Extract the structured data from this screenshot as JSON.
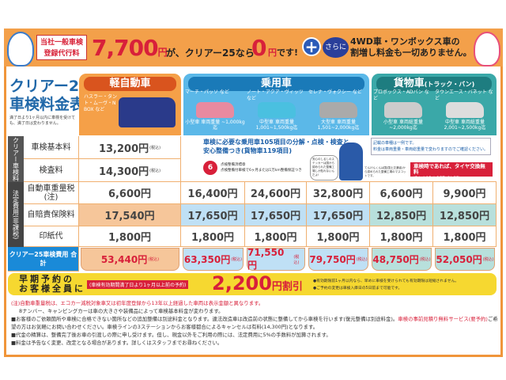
{
  "banner": {
    "tag": "当社一般車検 登録代行料",
    "price": "7,700",
    "yen": "円",
    "text1": "が、クリアー25なら",
    "zero": "0",
    "text2": "です!",
    "plus": "+",
    "sarani": "さらに",
    "wd_line1": "4WD車・ワンボックス車の",
    "wd_line2": "割増し料金も一切ありません。"
  },
  "title": {
    "line1": "クリアー25",
    "line2": "車検料金表",
    "note": "満了日より1ヶ月以内に車検を受けても、満了日は変わりません。"
  },
  "categories": [
    {
      "name": "軽自動車",
      "color": "#f08a2a",
      "cars": [
        {
          "examples": "ハスラー・タント・ムーヴ・N BOX など",
          "weight": ""
        }
      ]
    },
    {
      "name": "乗用車",
      "color": "#2e9fd8",
      "cars": [
        {
          "examples": "マーチ・パッソ など",
          "weight": "小型車 車両重量 ~1,000kg迄"
        },
        {
          "examples": "ノート・アクア・ヴィッツ など",
          "weight": "中型車 車両重量 1,001~1,500kg迄"
        },
        {
          "examples": "セレナ・ヴォクシー など",
          "weight": "大型車 車両重量 1,501~2,000kg迄"
        }
      ]
    },
    {
      "name": "貨物車",
      "suffix": "(トラック・バン)",
      "color": "#2aa0a0",
      "cars": [
        {
          "examples": "プロボックス・ADバン など",
          "weight": "小型車 車両総重量 ~2,000kg迄"
        },
        {
          "examples": "タウンエース・バネット など",
          "weight": "中型車 車両総重量 2,001~2,500kg迄"
        }
      ]
    }
  ],
  "groups": {
    "clear": "クリアー車検料",
    "legal": "法定費用(非課税)"
  },
  "rows": [
    {
      "label": "車検基本料",
      "values": [
        "13,200円"
      ],
      "tax": "(税込)"
    },
    {
      "label": "検査料",
      "values": [
        "14,300円"
      ],
      "tax": "(税込)"
    },
    {
      "label": "自動車重量税(注)",
      "values": [
        "6,600円",
        "16,400円",
        "24,600円",
        "32,800円",
        "6,600円",
        "9,900円"
      ]
    },
    {
      "label": "自賠責保険料",
      "values": [
        "17,540円",
        "17,650円",
        "17,650円",
        "17,650円",
        "12,850円",
        "12,850円"
      ]
    },
    {
      "label": "印紙代",
      "values": [
        "1,800円",
        "1,800円",
        "1,800円",
        "1,800円",
        "1,800円",
        "1,800円"
      ]
    }
  ],
  "total": {
    "label": "クリアー25車検費用 合計",
    "values": [
      "53,440円",
      "63,350円",
      "71,550円",
      "79,750円",
      "48,750円",
      "52,050円"
    ],
    "tax": "(税込)"
  },
  "info": {
    "headline1": "車検に必要な乗用車105項目の分解・点検・検査と",
    "headline2": "安心整備つき(貨物車119項目)",
    "seal": "6",
    "seal_title": "点検整備済標章",
    "seal_text": "点検整備付車検で6ヶ月または1万km整備保証つき",
    "bubble": "安心のしるしのステッカーは国から認められた整備工場しか貼れないんだよ!",
    "mascot_note": "てんけんくんは国(国土交通省)から認められた整備工場のマスコットです。",
    "notice1": "記載の車種は一例です。",
    "notice2": "料金は車両重量・車両総重量で変わりますのでご確認ください。",
    "tire": "車検時であれば、タイヤ交換無料",
    "tire_sub": "(ホイールのタイヤを交換いたします)"
  },
  "early": {
    "line1": "早期予約の",
    "line2": "お客様全員に",
    "cond": "(車検有効期間満了日より1ヶ月以上前の予約)",
    "amount": "2,200",
    "unit": "円割引",
    "note1": "●有効期限前1ヶ月以内なら、早めに車検を受けられても有効期限は短縮されません。",
    "note2": "●ご予約の変更は車検入庫日の5日前まで可能です。"
  },
  "notes": [
    "(注)自動車重量税は、エコカー減税対象車又は初年度登録から13年以上経過した車両は表示金額と異なります。",
    "8ナンバー、キャンピングカーは車の大きさや装備品によって車検基本料金が変わります。",
    "■お客様のご依頼箇所や車検に合格できない箇所などの追加整備は別途料金となります。違法改造車は改造前の状態に整備してから車検を行います(復元整備は別途料金)。",
    "車検の事前見積り無料サービス(要予約)",
    "ご希望の方はお気軽にお問い合わせください。車検ラインの3ステーションからお客様都合によるキャンセルは有料(14,300円)となります。",
    "■代金の精算は、整備完了後お車の引渡しの際に申し受けます。但し、現金以外をご利用の際には、法定費用に5%の手数料が加算されます。",
    "■料金は予告なく変更、改定となる場合があります。詳しくはスタッフまでお尋ねください。"
  ]
}
